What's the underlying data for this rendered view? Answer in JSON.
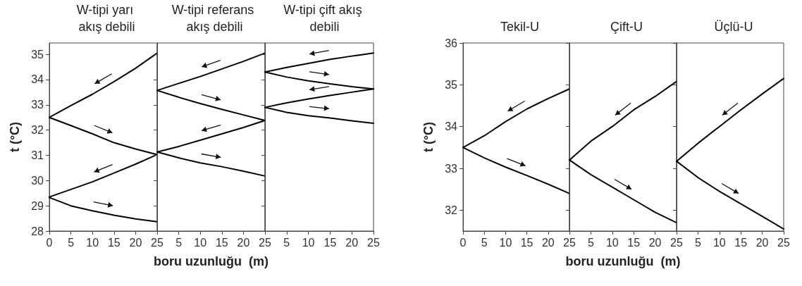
{
  "chart_data": [
    {
      "type": "line",
      "title": "W-tipi yarı akış debili",
      "ylabel": "t (°C)",
      "x": [
        0,
        5,
        10,
        15,
        20,
        25
      ],
      "xlim": [
        0,
        25
      ],
      "xticks": [
        0,
        5,
        10,
        15,
        20,
        25
      ],
      "ylim": [
        28,
        35.45
      ],
      "yticks": [
        28,
        29,
        30,
        31,
        32,
        33,
        34,
        35
      ],
      "grid": false,
      "marker": "none",
      "line_style": "solid",
      "series": [
        {
          "color": "#000000",
          "values": [
            32.5,
            32.97,
            33.42,
            33.92,
            34.45,
            35.05
          ]
        },
        {
          "color": "#000000",
          "values": [
            32.5,
            32.18,
            31.85,
            31.5,
            31.25,
            31.03
          ]
        },
        {
          "color": "#000000",
          "values": [
            29.35,
            29.65,
            29.95,
            30.3,
            30.65,
            31.03
          ]
        },
        {
          "color": "#000000",
          "values": [
            29.33,
            29.0,
            28.8,
            28.63,
            28.48,
            28.37
          ]
        }
      ]
    },
    {
      "type": "line",
      "title": "W-tipi referans akış debili",
      "xlabel": "boru uzunluğu  (m)",
      "x": [
        0,
        5,
        10,
        15,
        20,
        25
      ],
      "xlim": [
        0,
        25
      ],
      "xticks": [
        5,
        10,
        15,
        20,
        25
      ],
      "ylim": [
        28,
        35.45
      ],
      "yticks": [
        28,
        29,
        30,
        31,
        32,
        33,
        34,
        35
      ],
      "tick_labels": "x",
      "grid": false,
      "marker": "none",
      "line_style": "solid",
      "series": [
        {
          "color": "#000000",
          "values": [
            33.57,
            33.85,
            34.12,
            34.42,
            34.72,
            35.05
          ]
        },
        {
          "color": "#000000",
          "values": [
            33.57,
            33.3,
            33.05,
            32.82,
            32.6,
            32.38
          ]
        },
        {
          "color": "#000000",
          "values": [
            31.13,
            31.35,
            31.6,
            31.85,
            32.1,
            32.38
          ]
        },
        {
          "color": "#000000",
          "values": [
            31.13,
            30.9,
            30.7,
            30.55,
            30.37,
            30.18
          ]
        }
      ]
    },
    {
      "type": "line",
      "title": "W-tipi çift akış debili",
      "x": [
        0,
        5,
        10,
        15,
        20,
        25
      ],
      "xlim": [
        0,
        25
      ],
      "xticks": [
        5,
        10,
        15,
        20,
        25
      ],
      "ylim": [
        28,
        35.45
      ],
      "yticks": [
        28,
        29,
        30,
        31,
        32,
        33,
        34,
        35
      ],
      "tick_labels": "x",
      "grid": false,
      "marker": "none",
      "line_style": "solid",
      "series": [
        {
          "color": "#000000",
          "values": [
            34.3,
            34.48,
            34.64,
            34.8,
            34.93,
            35.05
          ]
        },
        {
          "color": "#000000",
          "values": [
            34.3,
            34.1,
            33.95,
            33.83,
            33.72,
            33.63
          ]
        },
        {
          "color": "#000000",
          "values": [
            32.9,
            33.08,
            33.23,
            33.37,
            33.5,
            33.63
          ]
        },
        {
          "color": "#000000",
          "values": [
            32.9,
            32.7,
            32.57,
            32.48,
            32.37,
            32.27
          ]
        }
      ]
    },
    {
      "type": "line",
      "title": "Tekil-U",
      "ylabel": "t (°C)",
      "x": [
        0,
        5,
        10,
        15,
        20,
        25
      ],
      "xlim": [
        0,
        25
      ],
      "xticks": [
        0,
        5,
        10,
        15,
        20,
        25
      ],
      "ylim": [
        31.5,
        36
      ],
      "yticks": [
        32,
        33,
        34,
        35,
        36
      ],
      "grid": false,
      "marker": "none",
      "line_style": "solid",
      "series": [
        {
          "color": "#000000",
          "values": [
            33.5,
            33.78,
            34.12,
            34.42,
            34.67,
            34.9
          ]
        },
        {
          "color": "#000000",
          "values": [
            33.5,
            33.25,
            33.03,
            32.83,
            32.62,
            32.4
          ]
        }
      ]
    },
    {
      "type": "line",
      "title": "Çift-U",
      "xlabel": "boru uzunluğu  (m)",
      "x": [
        0,
        5,
        10,
        15,
        20,
        25
      ],
      "xlim": [
        0,
        25
      ],
      "xticks": [
        5,
        10,
        15,
        20,
        25
      ],
      "ylim": [
        31.5,
        36
      ],
      "yticks": [
        32,
        33,
        34,
        35,
        36
      ],
      "tick_labels": "x",
      "grid": false,
      "marker": "none",
      "line_style": "solid",
      "series": [
        {
          "color": "#000000",
          "values": [
            33.2,
            33.65,
            34.0,
            34.4,
            34.72,
            35.08
          ]
        },
        {
          "color": "#000000",
          "values": [
            33.2,
            32.85,
            32.55,
            32.25,
            31.95,
            31.7
          ]
        }
      ]
    },
    {
      "type": "line",
      "title": "Üçlü-U",
      "x": [
        0,
        5,
        10,
        15,
        20,
        25
      ],
      "xlim": [
        0,
        25
      ],
      "xticks": [
        5,
        10,
        15,
        20,
        25
      ],
      "ylim": [
        31.5,
        36
      ],
      "yticks": [
        32,
        33,
        34,
        35,
        36
      ],
      "tick_labels": "x",
      "grid": false,
      "marker": "none",
      "line_style": "solid",
      "series": [
        {
          "color": "#000000",
          "values": [
            33.17,
            33.6,
            34.0,
            34.4,
            34.78,
            35.15
          ]
        },
        {
          "color": "#000000",
          "values": [
            33.17,
            32.78,
            32.45,
            32.15,
            31.85,
            31.55
          ]
        }
      ]
    }
  ]
}
